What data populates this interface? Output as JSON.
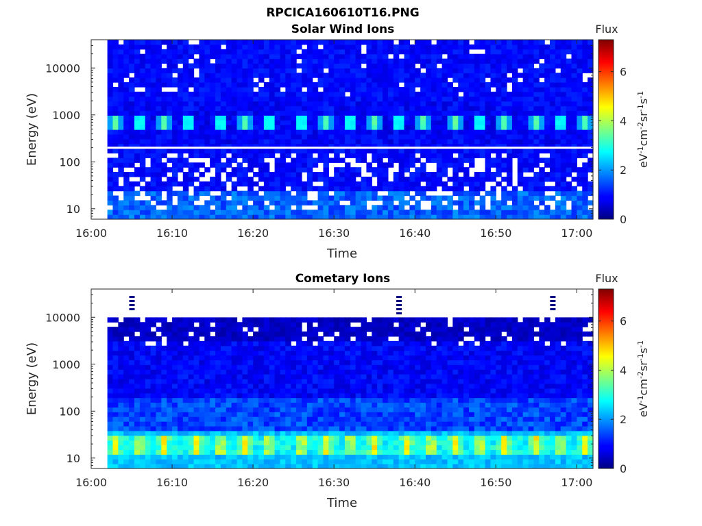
{
  "figure": {
    "title": "RPCICA160610T16.PNG"
  },
  "chart_data": [
    {
      "type": "heatmap",
      "title": "Solar Wind Ions",
      "xlabel": "Time",
      "ylabel": "Energy (eV)",
      "y_scale": "log",
      "xlim": [
        "16:00",
        "17:02"
      ],
      "ylim_eV": [
        6,
        40000
      ],
      "x_ticks": [
        "16:00",
        "16:10",
        "16:20",
        "16:30",
        "16:40",
        "16:50",
        "17:00"
      ],
      "y_ticks": [
        "10",
        "100",
        "1000",
        "10000"
      ],
      "data_start": "16:02",
      "data_end": "17:02",
      "white_line_eV": 200,
      "features": {
        "solar_wind_peak_eV": 700,
        "peak_flux": 3.5,
        "peak_times": [
          "16:03",
          "16:06",
          "16:09",
          "16:12",
          "16:16",
          "16:19",
          "16:22",
          "16:26",
          "16:29",
          "16:32",
          "16:35",
          "16:38",
          "16:41",
          "16:45",
          "16:48",
          "16:51",
          "16:55",
          "16:58",
          "17:01"
        ]
      },
      "colorbar": {
        "title": "Flux",
        "label_html": "eV<tspan baseline-shift='super' font-size='11'>-1</tspan>cm<tspan baseline-shift='super' font-size='11'>-2</tspan>sr<tspan baseline-shift='super' font-size='11'>-1</tspan>s<tspan baseline-shift='super' font-size='11'>-1</tspan>",
        "range": [
          0,
          7.3
        ],
        "ticks": [
          "0",
          "2",
          "4",
          "6"
        ],
        "colormap": "jet"
      }
    },
    {
      "type": "heatmap",
      "title": "Cometary Ions",
      "xlabel": "Time",
      "ylabel": "Energy (eV)",
      "y_scale": "log",
      "xlim": [
        "16:00",
        "17:02"
      ],
      "ylim_eV": [
        6,
        40000
      ],
      "x_ticks": [
        "16:00",
        "16:10",
        "16:20",
        "16:30",
        "16:40",
        "16:50",
        "17:00"
      ],
      "y_ticks": [
        "10",
        "100",
        "1000",
        "10000"
      ],
      "data_start": "16:02",
      "data_end": "17:02",
      "features": {
        "cometary_peak_eV": 20,
        "peak_flux": 4.3,
        "max_energy_eV": 10000,
        "peak_times": [
          "16:03",
          "16:06",
          "16:09",
          "16:13",
          "16:16",
          "16:19",
          "16:22",
          "16:26",
          "16:29",
          "16:32",
          "16:35",
          "16:39",
          "16:42",
          "16:45",
          "16:48",
          "16:51",
          "16:55",
          "16:58",
          "17:01"
        ]
      },
      "colorbar": {
        "title": "Flux",
        "label_html": "eV<tspan baseline-shift='super' font-size='11'>-1</tspan>cm<tspan baseline-shift='super' font-size='11'>-2</tspan>sr<tspan baseline-shift='super' font-size='11'>-1</tspan>s<tspan baseline-shift='super' font-size='11'>-1</tspan>",
        "range": [
          0,
          7.3
        ],
        "ticks": [
          "0",
          "2",
          "4",
          "6"
        ],
        "colormap": "jet"
      }
    }
  ]
}
